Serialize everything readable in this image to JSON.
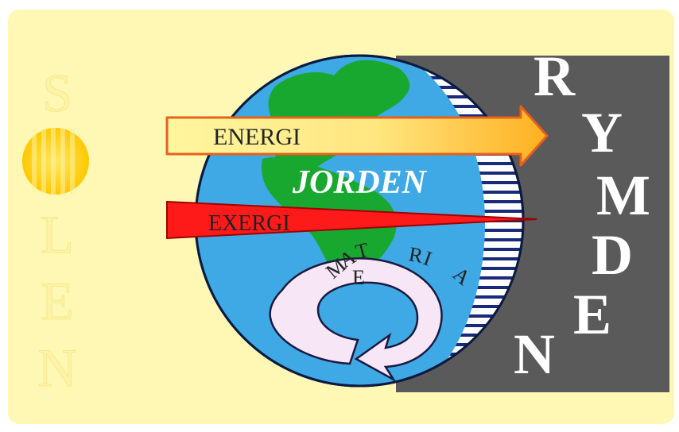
{
  "sun_label_letters": [
    "S",
    "O",
    "L",
    "E",
    "N"
  ],
  "space_label_letters": [
    "R",
    "Y",
    "M",
    "D",
    "E",
    "N"
  ],
  "earth_label": "JORDEN",
  "energy_label": "ENERGI",
  "exergy_label": "EXERGI",
  "matter_label_letters": [
    "M",
    "A",
    "T",
    "E",
    "R",
    "I",
    "A"
  ],
  "colors": {
    "background": "#fff8b4",
    "sun": "#ffd100",
    "space": "#5a5a5a",
    "ocean": "#3fa9e6",
    "land": "#18a830",
    "energy_arrow": "#ffe680",
    "exergy_wedge": "#ff1a1a",
    "cycle_arrow": "#f6e6f6",
    "night_stripes": "#1a2a7a"
  }
}
